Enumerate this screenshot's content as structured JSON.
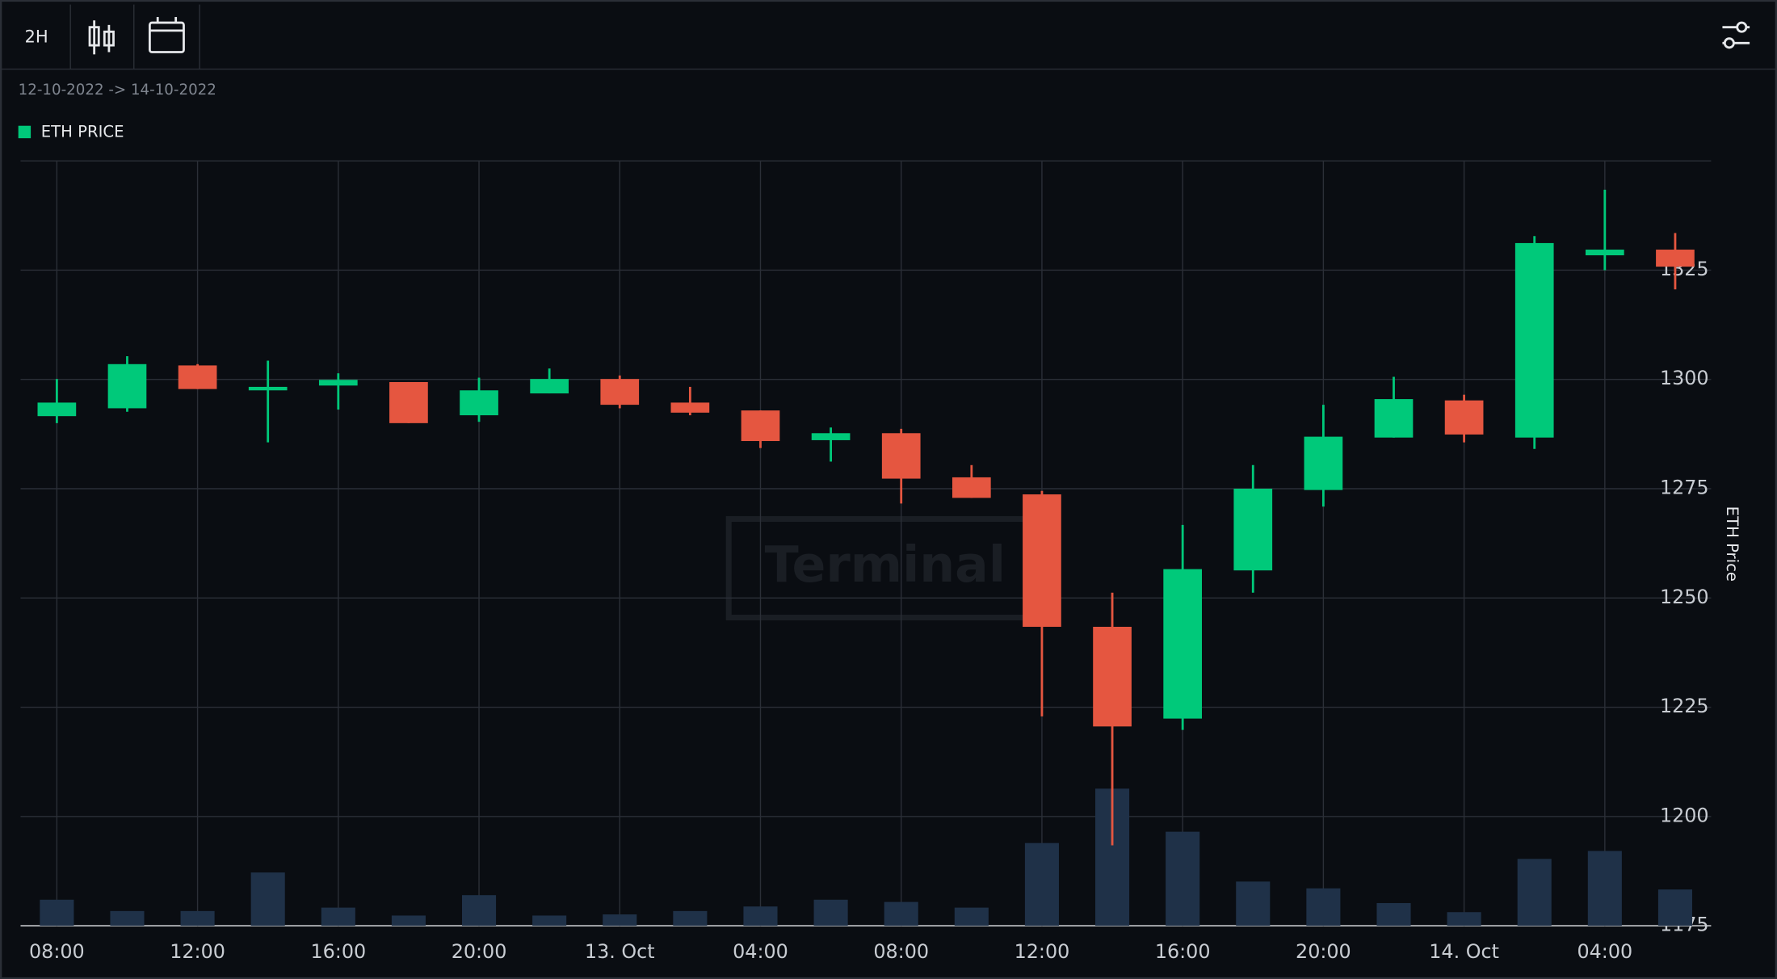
{
  "toolbar": {
    "interval": "2H"
  },
  "date_range": "12-10-2022 -> 14-10-2022",
  "watermark": "Terminal",
  "chart_data": {
    "type": "candlestick",
    "categories": [
      "08:00",
      null,
      "12:00",
      null,
      "16:00",
      null,
      "20:00",
      null,
      "13. Oct",
      null,
      "04:00",
      null,
      "08:00",
      null,
      "12:00",
      null,
      "16:00",
      null,
      "20:00",
      null,
      "14. Oct",
      null,
      "04:00",
      null
    ],
    "series": [
      {
        "name": "ETH PRICE",
        "up_color": "#00c97a",
        "down_color": "#e55640",
        "open": [
          1291.6,
          1293.4,
          1303.2,
          1297.5,
          1298.6,
          1299.4,
          1291.8,
          1296.8,
          1300.1,
          1294.7,
          1292.9,
          1286.1,
          1287.7,
          1277.6,
          1273.7,
          1243.4,
          1222.4,
          1256.3,
          1274.7,
          1286.7,
          1295.2,
          1286.7,
          1328.4,
          1329.7
        ],
        "high": [
          1300.1,
          1305.3,
          1303.5,
          1304.3,
          1301.4,
          1299.4,
          1300.4,
          1302.5,
          1300.9,
          1298.3,
          1292.9,
          1289.0,
          1288.7,
          1280.4,
          1274.5,
          1251.2,
          1266.7,
          1280.4,
          1294.2,
          1300.6,
          1296.5,
          1332.8,
          1343.4,
          1333.5
        ],
        "low": [
          1290.0,
          1292.6,
          1297.8,
          1285.6,
          1293.1,
          1290.0,
          1290.3,
          1296.8,
          1293.4,
          1291.8,
          1284.3,
          1281.2,
          1271.6,
          1272.9,
          1222.9,
          1193.4,
          1219.8,
          1251.2,
          1270.9,
          1286.7,
          1285.6,
          1284.1,
          1325.0,
          1320.6
        ],
        "close": [
          1294.7,
          1303.5,
          1297.8,
          1298.3,
          1299.9,
          1290.0,
          1297.5,
          1300.1,
          1294.2,
          1292.4,
          1285.9,
          1287.7,
          1277.3,
          1272.9,
          1243.4,
          1220.6,
          1256.6,
          1275.0,
          1286.9,
          1295.5,
          1287.4,
          1331.2,
          1329.7,
          1325.8
        ]
      }
    ],
    "volume": {
      "color": "#1f3148",
      "values": [
        23,
        13,
        13,
        47,
        16,
        9,
        27,
        9,
        10,
        13,
        17,
        23,
        21,
        16,
        73,
        121,
        83,
        39,
        33,
        20,
        12,
        59,
        66,
        32
      ]
    },
    "y_axis_label": "ETH Price",
    "ylim": [
      1175,
      1350
    ],
    "yticks": [
      1175,
      1200,
      1225,
      1250,
      1275,
      1300,
      1325
    ],
    "grid": true
  }
}
